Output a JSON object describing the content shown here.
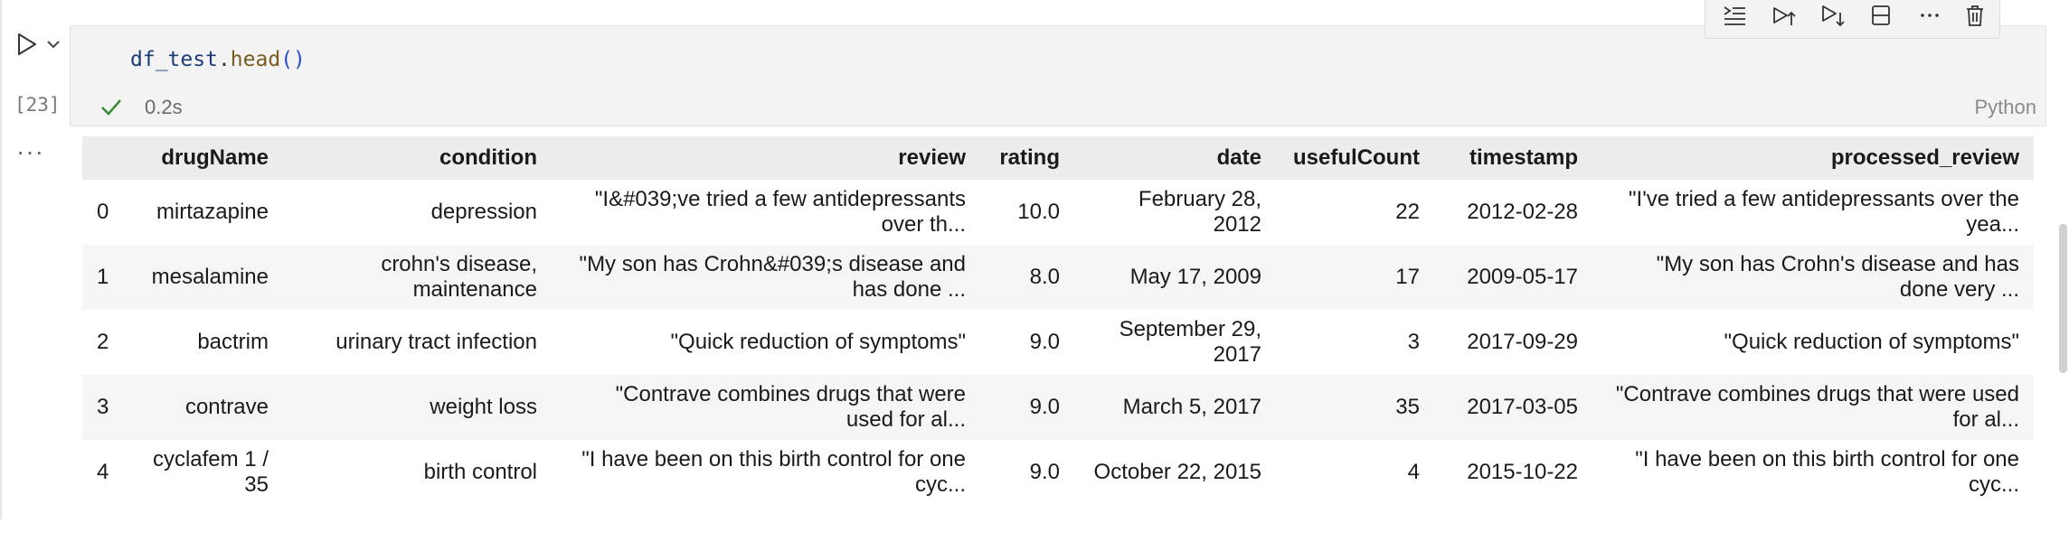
{
  "cell": {
    "code": {
      "var": "df_test",
      "method": "head",
      "parens": "()"
    },
    "execution_count": "[23]",
    "exec_time": "0.2s",
    "language": "Python",
    "output_menu": "···"
  },
  "toolbar": {
    "items": [
      "run-by-line-icon",
      "execute-above-icon",
      "execute-below-icon",
      "split-cell-icon",
      "more-icon",
      "delete-icon"
    ]
  },
  "table": {
    "columns": [
      "",
      "drugName",
      "condition",
      "review",
      "rating",
      "date",
      "usefulCount",
      "timestamp",
      "processed_review"
    ],
    "rows": [
      [
        "0",
        "mirtazapine",
        "depression",
        "\"I&#039;ve tried a few antidepressants over th...",
        "10.0",
        "February 28, 2012",
        "22",
        "2012-02-28",
        "\"I've tried a few antidepressants over the yea..."
      ],
      [
        "1",
        "mesalamine",
        "crohn's disease, maintenance",
        "\"My son has Crohn&#039;s disease and has done ...",
        "8.0",
        "May 17, 2009",
        "17",
        "2009-05-17",
        "\"My son has Crohn's disease and has done very ..."
      ],
      [
        "2",
        "bactrim",
        "urinary tract infection",
        "\"Quick reduction of symptoms\"",
        "9.0",
        "September 29, 2017",
        "3",
        "2017-09-29",
        "\"Quick reduction of symptoms\""
      ],
      [
        "3",
        "contrave",
        "weight loss",
        "\"Contrave combines drugs that were used for al...",
        "9.0",
        "March 5, 2017",
        "35",
        "2017-03-05",
        "\"Contrave combines drugs that were used for al..."
      ],
      [
        "4",
        "cyclafem 1 / 35",
        "birth control",
        "\"I have been on this birth control for one cyc...",
        "9.0",
        "October 22, 2015",
        "4",
        "2015-10-22",
        "\"I have been on this birth control for one cyc..."
      ]
    ]
  },
  "colors": {
    "cell_bg": "#f3f3f3",
    "success": "#388a34",
    "code_var": "#1c3a78",
    "code_method": "#7a5c1e",
    "code_paren": "#2a4fd4"
  }
}
